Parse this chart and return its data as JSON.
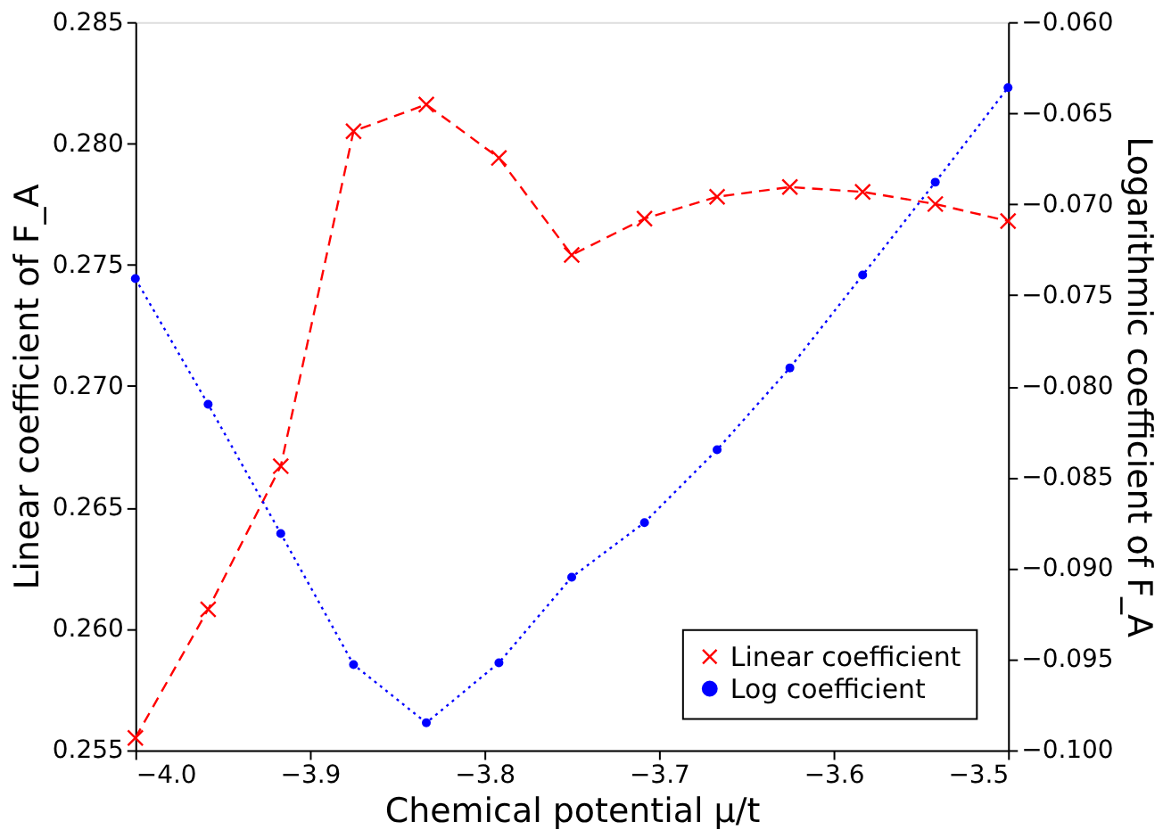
{
  "chart_data": {
    "type": "line",
    "xlabel": "Chemical potential μ/t",
    "ylabel": "Linear coefficient of F_A",
    "y2label": "Logarithmic coefficient of F_A",
    "x": [
      -4.0,
      -3.9583,
      -3.9167,
      -3.875,
      -3.8333,
      -3.7917,
      -3.75,
      -3.7083,
      -3.6667,
      -3.625,
      -3.5833,
      -3.5417,
      -3.5
    ],
    "series": [
      {
        "name": "Linear coefficient",
        "color": "#ff0000",
        "marker": "cross",
        "line_style": "dashed",
        "axis": "y",
        "values": [
          0.2555,
          0.2608,
          0.2667,
          0.2805,
          0.2816,
          0.2794,
          0.2754,
          0.2769,
          0.2778,
          0.2782,
          0.278,
          0.2775,
          0.2768
        ]
      },
      {
        "name": "Log coefficient",
        "color": "#0000ff",
        "marker": "circle",
        "line_style": "dotted",
        "axis": "y2",
        "values": [
          -0.0741,
          -0.081,
          -0.0881,
          -0.0953,
          -0.0985,
          -0.0952,
          -0.0905,
          -0.0875,
          -0.0835,
          -0.079,
          -0.0739,
          -0.0688,
          -0.0636
        ]
      }
    ],
    "xlim": [
      -4.0,
      -3.5
    ],
    "xticks": [
      {
        "value": -4.0,
        "label": "−4.0"
      },
      {
        "value": -3.9,
        "label": "−3.9"
      },
      {
        "value": -3.8,
        "label": "−3.8"
      },
      {
        "value": -3.7,
        "label": "−3.7"
      },
      {
        "value": -3.6,
        "label": "−3.6"
      },
      {
        "value": -3.5,
        "label": "−3.5"
      }
    ],
    "ylim": [
      0.255,
      0.285
    ],
    "yticks": [
      {
        "value": 0.255,
        "label": "0.255"
      },
      {
        "value": 0.26,
        "label": "0.260"
      },
      {
        "value": 0.265,
        "label": "0.265"
      },
      {
        "value": 0.27,
        "label": "0.270"
      },
      {
        "value": 0.275,
        "label": "0.275"
      },
      {
        "value": 0.28,
        "label": "0.280"
      },
      {
        "value": 0.285,
        "label": "0.285"
      }
    ],
    "y2lim": [
      -0.1,
      -0.06
    ],
    "y2ticks": [
      {
        "value": -0.1,
        "label": "−0.100"
      },
      {
        "value": -0.095,
        "label": "−0.095"
      },
      {
        "value": -0.09,
        "label": "−0.090"
      },
      {
        "value": -0.085,
        "label": "−0.085"
      },
      {
        "value": -0.08,
        "label": "−0.080"
      },
      {
        "value": -0.075,
        "label": "−0.075"
      },
      {
        "value": -0.07,
        "label": "−0.070"
      },
      {
        "value": -0.065,
        "label": "−0.065"
      },
      {
        "value": -0.06,
        "label": "−0.060"
      }
    ],
    "grid": false,
    "legend": "bottom right"
  }
}
